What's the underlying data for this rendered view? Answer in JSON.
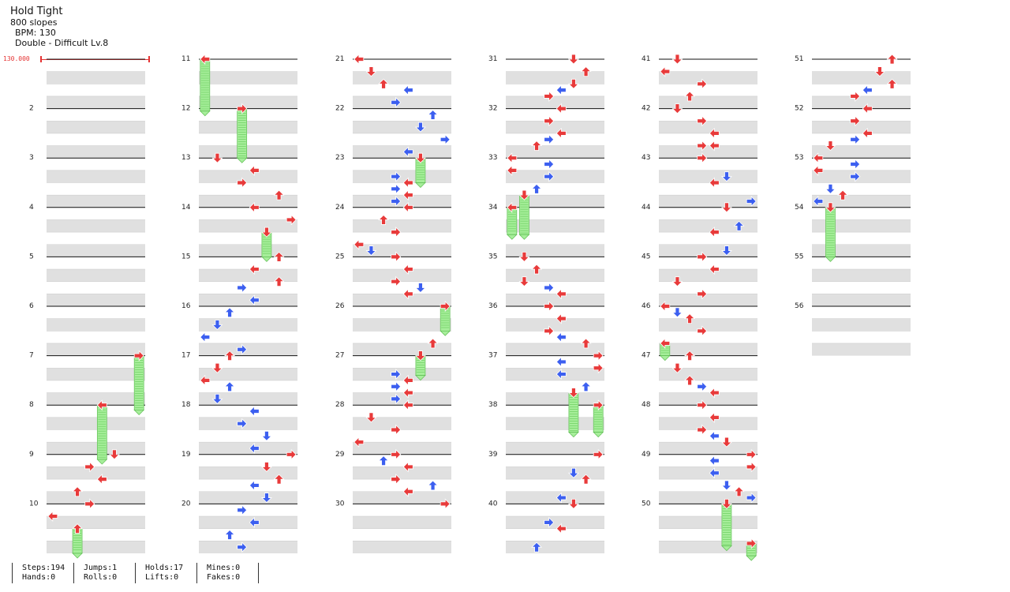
{
  "song": {
    "title": "Hold Tight",
    "artist": "800 slopes",
    "bpm_label": "BPM: 130",
    "difficulty_label": "Double - Difficult  Lv.8",
    "bpm_marker": "130.000"
  },
  "colors": {
    "red_note": "#e83a3a",
    "blue_note": "#3c5ff0",
    "hold_fill": "#a6ee9a",
    "band": "#e0e0e0",
    "measure_line": "#111111"
  },
  "columns": [
    {
      "measures": [
        "",
        "2",
        "3",
        "4",
        "5",
        "6",
        "7",
        "8",
        "9",
        "10"
      ]
    },
    {
      "measures": [
        "11",
        "12",
        "13",
        "14",
        "15",
        "16",
        "17",
        "18",
        "19",
        "20"
      ]
    },
    {
      "measures": [
        "21",
        "22",
        "23",
        "24",
        "25",
        "26",
        "27",
        "28",
        "29",
        "30"
      ]
    },
    {
      "measures": [
        "31",
        "32",
        "33",
        "34",
        "35",
        "36",
        "37",
        "38",
        "39",
        "40"
      ]
    },
    {
      "measures": [
        "41",
        "42",
        "43",
        "44",
        "45",
        "46",
        "47",
        "48",
        "49",
        "50"
      ]
    },
    {
      "measures": [
        "51",
        "52",
        "53",
        "54",
        "55",
        "56"
      ]
    }
  ],
  "stats": [
    {
      "line1": "Steps:194",
      "line2": "Hands:0"
    },
    {
      "line1": "Jumps:1",
      "line2": "Rolls:0"
    },
    {
      "line1": "Holds:17",
      "line2": "Lifts:0"
    },
    {
      "line1": "Mines:0",
      "line2": "Fakes:0"
    }
  ]
}
